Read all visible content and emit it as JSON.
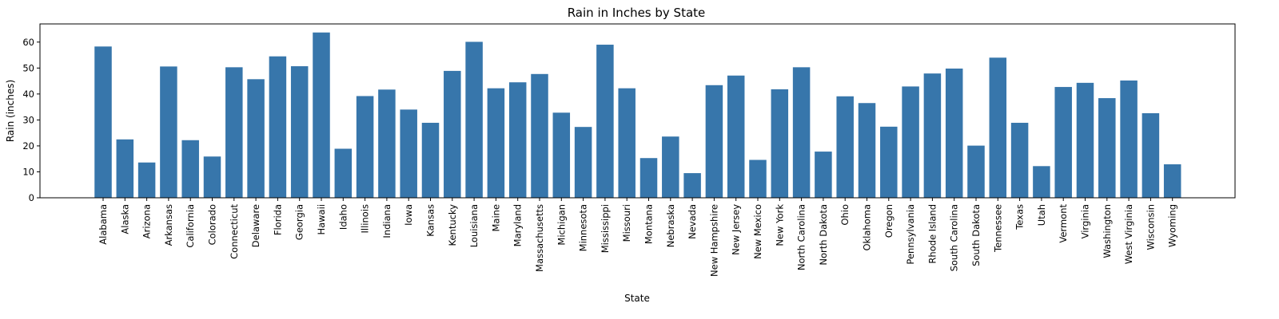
{
  "chart_data": {
    "type": "bar",
    "title": "Rain in Inches by State",
    "xlabel": "State",
    "ylabel": "Rain (inches)",
    "ylim": [
      0,
      67
    ],
    "yticks": [
      0,
      10,
      20,
      30,
      40,
      50,
      60
    ],
    "grid": false,
    "bar_color": "#3776ab",
    "categories": [
      "Alabama",
      "Alaska",
      "Arizona",
      "Arkansas",
      "California",
      "Colorado",
      "Connecticut",
      "Delaware",
      "Florida",
      "Georgia",
      "Hawaii",
      "Idaho",
      "Illinois",
      "Indiana",
      "Iowa",
      "Kansas",
      "Kentucky",
      "Louisiana",
      "Maine",
      "Maryland",
      "Massachusetts",
      "Michigan",
      "Minnesota",
      "Mississippi",
      "Missouri",
      "Montana",
      "Nebraska",
      "Nevada",
      "New Hampshire",
      "New Jersey",
      "New Mexico",
      "New York",
      "North Carolina",
      "North Dakota",
      "Ohio",
      "Oklahoma",
      "Oregon",
      "Pennsylvania",
      "Rhode Island",
      "South Carolina",
      "South Dakota",
      "Tennessee",
      "Texas",
      "Utah",
      "Vermont",
      "Virginia",
      "Washington",
      "West Virginia",
      "Wisconsin",
      "Wyoming"
    ],
    "values": [
      58.3,
      22.5,
      13.6,
      50.6,
      22.2,
      15.9,
      50.3,
      45.7,
      54.5,
      50.7,
      63.7,
      18.9,
      39.2,
      41.7,
      34.0,
      28.9,
      48.9,
      60.1,
      42.2,
      44.5,
      47.7,
      32.8,
      27.3,
      59.0,
      42.2,
      15.3,
      23.6,
      9.5,
      43.4,
      47.1,
      14.6,
      41.8,
      50.3,
      17.8,
      39.1,
      36.5,
      27.4,
      42.9,
      47.9,
      49.8,
      20.1,
      54.0,
      28.9,
      12.2,
      42.7,
      44.3,
      38.4,
      45.2,
      32.6,
      12.9
    ]
  }
}
